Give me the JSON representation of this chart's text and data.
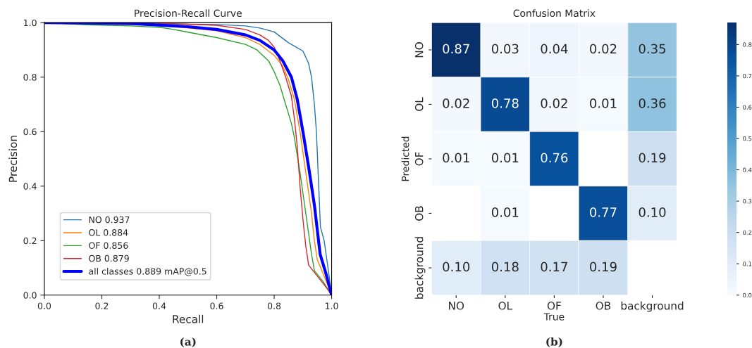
{
  "chart_data": [
    {
      "type": "line",
      "title": "Precision-Recall Curve",
      "xlabel": "Recall",
      "ylabel": "Precision",
      "xlim": [
        0.0,
        1.0
      ],
      "ylim": [
        0.0,
        1.0
      ],
      "xticks": [
        {
          "value": 0,
          "label": "0.0"
        },
        0.2,
        0.4,
        0.6,
        0.8,
        {
          "value": 1,
          "label": "1.0"
        }
      ],
      "yticks": [
        {
          "value": 0,
          "label": "0.0"
        },
        0.2,
        0.4,
        0.6,
        0.8,
        {
          "value": 1,
          "label": "1.0"
        }
      ],
      "grid": false,
      "legend": "bottom left",
      "line_style": "solid",
      "marker": "none",
      "annotations": [
        "(a)"
      ],
      "series": [
        {
          "name": "NO 0.937",
          "color": "#1f77b4",
          "x": [
            0,
            0.2,
            0.4,
            0.6,
            0.7,
            0.75,
            0.8,
            0.85,
            0.9,
            0.92,
            0.93,
            0.94,
            0.947,
            0.955,
            0.961,
            0.974,
            0.99,
            1.0
          ],
          "values": [
            1.0,
            0.998,
            0.996,
            0.993,
            0.988,
            0.98,
            0.966,
            0.926,
            0.896,
            0.85,
            0.8,
            0.7,
            0.6,
            0.4,
            0.25,
            0.2,
            0.08,
            0.0
          ]
        },
        {
          "name": "OL 0.884",
          "color": "#ff7f0e",
          "x": [
            0,
            0.4,
            0.5,
            0.6,
            0.7,
            0.75,
            0.8,
            0.83,
            0.85,
            0.87,
            0.89,
            0.91,
            0.93,
            0.94,
            0.95,
            0.97,
            1.0
          ],
          "values": [
            1.0,
            0.99,
            0.98,
            0.97,
            0.945,
            0.92,
            0.88,
            0.84,
            0.79,
            0.72,
            0.6,
            0.45,
            0.3,
            0.2,
            0.13,
            0.08,
            0.0
          ]
        },
        {
          "name": "OF 0.856",
          "color": "#2ca02c",
          "x": [
            0,
            0.15,
            0.3,
            0.4,
            0.45,
            0.5,
            0.6,
            0.7,
            0.74,
            0.78,
            0.8,
            0.82,
            0.84,
            0.86,
            0.87,
            0.89,
            0.91,
            0.93,
            0.94,
            0.97,
            1.0
          ],
          "values": [
            1.0,
            0.992,
            0.988,
            0.983,
            0.975,
            0.965,
            0.945,
            0.92,
            0.9,
            0.86,
            0.82,
            0.77,
            0.7,
            0.63,
            0.58,
            0.45,
            0.3,
            0.15,
            0.09,
            0.05,
            0.0
          ]
        },
        {
          "name": "OB 0.879",
          "color": "#d62728",
          "x": [
            0,
            0.4,
            0.6,
            0.7,
            0.75,
            0.78,
            0.8,
            0.82,
            0.84,
            0.86,
            0.87,
            0.88,
            0.89,
            0.9,
            0.91,
            0.92,
            0.95,
            0.98,
            1.0
          ],
          "values": [
            1.0,
            0.998,
            0.99,
            0.975,
            0.955,
            0.935,
            0.91,
            0.86,
            0.8,
            0.73,
            0.65,
            0.55,
            0.4,
            0.28,
            0.18,
            0.11,
            0.07,
            0.03,
            0.0
          ]
        },
        {
          "name": "all classes 0.889 mAP@0.5",
          "color": "#0000ff",
          "x": [
            0,
            0.3,
            0.5,
            0.6,
            0.7,
            0.75,
            0.8,
            0.83,
            0.86,
            0.88,
            0.9,
            0.92,
            0.94,
            0.95,
            0.96,
            0.98,
            1.0
          ],
          "values": [
            1.0,
            0.997,
            0.985,
            0.975,
            0.955,
            0.935,
            0.9,
            0.86,
            0.8,
            0.72,
            0.6,
            0.47,
            0.33,
            0.24,
            0.15,
            0.08,
            0.0
          ]
        }
      ]
    },
    {
      "type": "heatmap",
      "title": "Confusion Matrix",
      "xlabel": "True",
      "ylabel": "Predicted",
      "categories": [
        "NO",
        "OL",
        "OF",
        "OB",
        "background"
      ],
      "y_categories": [
        "NO",
        "OL",
        "OF",
        "OB",
        "background"
      ],
      "cells": [
        [
          0.87,
          0.03,
          0.04,
          0.02,
          0.35
        ],
        [
          0.02,
          0.78,
          0.02,
          0.01,
          0.36
        ],
        [
          0.01,
          0.01,
          0.76,
          null,
          0.19
        ],
        [
          null,
          0.01,
          null,
          0.77,
          0.1
        ],
        [
          0.1,
          0.18,
          0.17,
          0.19,
          null
        ]
      ],
      "cell_labels": [
        [
          "0.87",
          "0.03",
          "0.04",
          "0.02",
          "0.35"
        ],
        [
          "0.02",
          "0.78",
          "0.02",
          "0.01",
          "0.36"
        ],
        [
          "0.01",
          "0.01",
          "0.76",
          null,
          "0.19"
        ],
        [
          null,
          "0.01",
          null,
          "0.77",
          "0.10"
        ],
        [
          "0.10",
          "0.18",
          "0.17",
          "0.19",
          null
        ]
      ],
      "clim": [
        0.0,
        0.87
      ],
      "cticks": [
        {
          "value": 0,
          "label": "0.0"
        },
        0.1,
        0.2,
        0.3,
        0.4,
        0.5,
        0.6,
        0.7,
        0.8
      ],
      "annotations": [
        "(b)"
      ]
    }
  ]
}
